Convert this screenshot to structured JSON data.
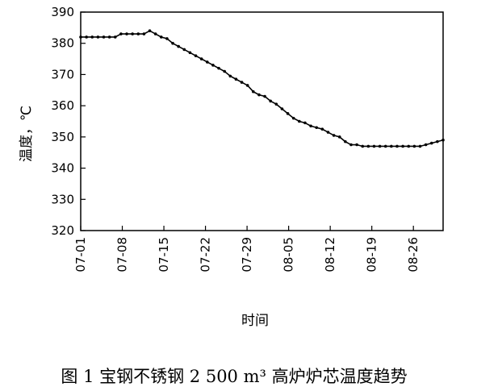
{
  "chart_data": {
    "type": "line",
    "ylabel": "温度，℃",
    "xlabel": "时间",
    "ylim": [
      320,
      390
    ],
    "yticks": [
      320,
      330,
      340,
      350,
      360,
      370,
      380,
      390
    ],
    "xticks": [
      "07-01",
      "07-08",
      "07-15",
      "07-22",
      "07-29",
      "08-05",
      "08-12",
      "08-19",
      "08-26"
    ],
    "x_start": "07-01",
    "x_end": "08-31",
    "grid": false,
    "series": [
      {
        "values": [
          382,
          382,
          382,
          382,
          382,
          382,
          382,
          383,
          383,
          383,
          383,
          383,
          384,
          383,
          382,
          381.5,
          380,
          379,
          378,
          377,
          376,
          375,
          374,
          373,
          372,
          371,
          369.5,
          368.5,
          367.5,
          366.5,
          364.5,
          363.5,
          363,
          361.5,
          360.5,
          359,
          357.5,
          356,
          355,
          354.5,
          353.5,
          353,
          352.5,
          351.5,
          350.5,
          350,
          348.5,
          347.5,
          347.5,
          347,
          347,
          347,
          347,
          347,
          347,
          347,
          347,
          347,
          347,
          347,
          347.5,
          348,
          348.5,
          349
        ]
      }
    ],
    "caption": "图 1   宝钢不锈钢 2 500 m³ 高炉炉芯温度趋势"
  }
}
